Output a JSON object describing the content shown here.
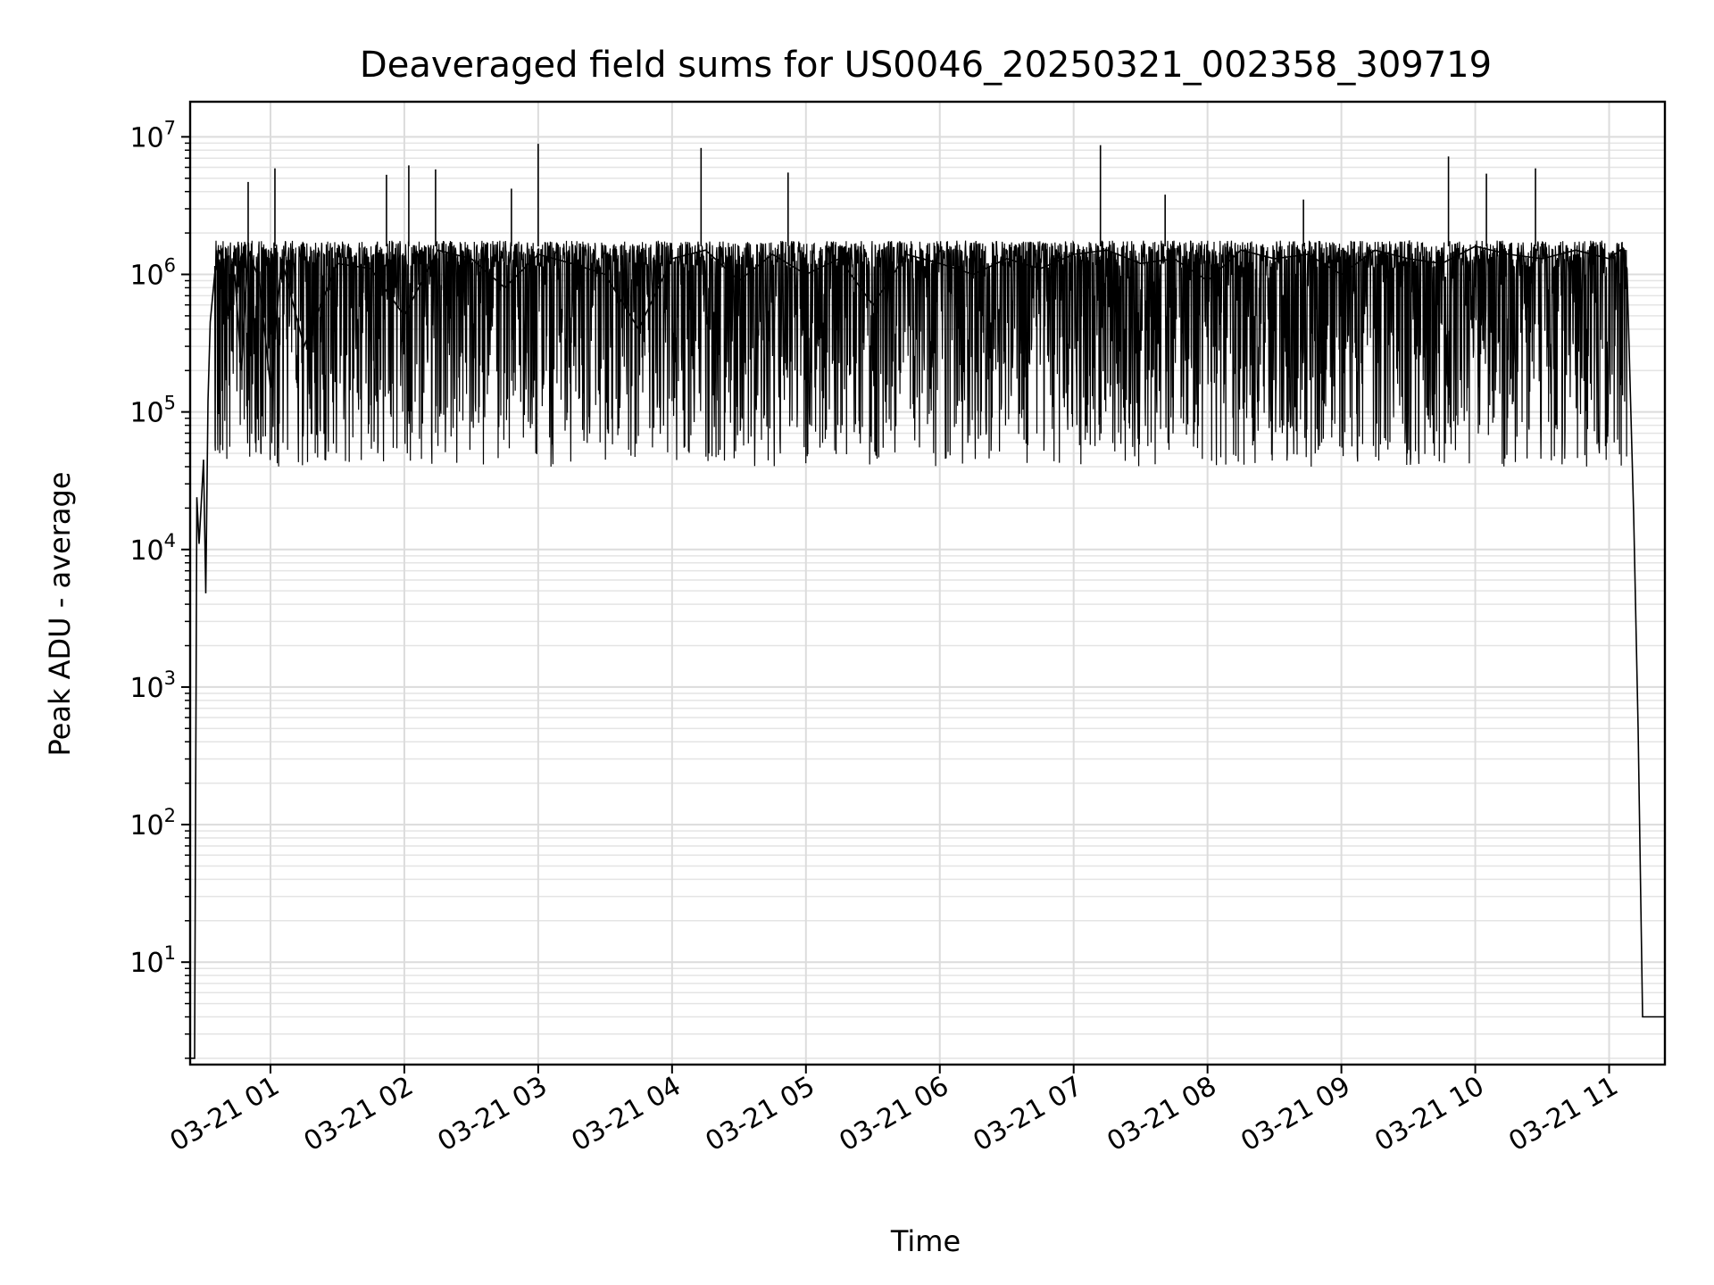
{
  "chart_data": {
    "type": "line",
    "title": "Deaveraged field sums for US0046_20250321_002358_309719",
    "xlabel": "Time",
    "ylabel": "Peak ADU - average",
    "yscale": "log",
    "grid": true,
    "xlim": [
      "03-21 00:24",
      "03-21 11:25"
    ],
    "ylim": [
      1.8,
      18000000
    ],
    "x_ticks": [
      "03-21 01",
      "03-21 02",
      "03-21 03",
      "03-21 04",
      "03-21 05",
      "03-21 06",
      "03-21 07",
      "03-21 08",
      "03-21 09",
      "03-21 10",
      "03-21 11"
    ],
    "y_ticks": [
      {
        "base": "10",
        "exp": "1",
        "value": 10
      },
      {
        "base": "10",
        "exp": "2",
        "value": 100
      },
      {
        "base": "10",
        "exp": "3",
        "value": 1000
      },
      {
        "base": "10",
        "exp": "4",
        "value": 10000
      },
      {
        "base": "10",
        "exp": "5",
        "value": 100000
      },
      {
        "base": "10",
        "exp": "6",
        "value": 1000000
      },
      {
        "base": "10",
        "exp": "7",
        "value": 10000000
      }
    ],
    "line_color": "#000000",
    "series": [
      {
        "x": [
          "03-21 00:24",
          "03-21 00:25",
          "03-21 00:26",
          "03-21 00:27",
          "03-21 00:28",
          "03-21 00:29",
          "03-21 00:30",
          "03-21 00:31",
          "03-21 00:32",
          "03-21 00:33",
          "03-21 00:35",
          "03-21 00:37",
          "03-21 00:39",
          "03-21 00:41",
          "03-21 00:44",
          "03-21 00:47",
          "03-21 00:50",
          "03-21 00:55",
          "03-21 01:00",
          "03-21 01:05",
          "03-21 01:15",
          "03-21 01:30",
          "03-21 01:45",
          "03-21 02:00",
          "03-21 02:15",
          "03-21 02:30",
          "03-21 02:45",
          "03-21 03:00",
          "03-21 03:15",
          "03-21 03:30",
          "03-21 03:45",
          "03-21 04:00",
          "03-21 04:15",
          "03-21 04:30",
          "03-21 04:45",
          "03-21 05:00",
          "03-21 05:15",
          "03-21 05:30",
          "03-21 05:45",
          "03-21 06:00",
          "03-21 06:15",
          "03-21 06:30",
          "03-21 06:45",
          "03-21 07:00",
          "03-21 07:15",
          "03-21 07:30",
          "03-21 07:45",
          "03-21 08:00",
          "03-21 08:15",
          "03-21 08:30",
          "03-21 08:45",
          "03-21 09:00",
          "03-21 09:15",
          "03-21 09:30",
          "03-21 09:45",
          "03-21 10:00",
          "03-21 10:15",
          "03-21 10:30",
          "03-21 10:45",
          "03-21 11:00",
          "03-21 11:05",
          "03-21 11:08",
          "03-21 11:11",
          "03-21 11:13",
          "03-21 11:15",
          "03-21 11:17",
          "03-21 11:19",
          "03-21 11:21",
          "03-21 11:23",
          "03-21 11:25"
        ],
        "y": [
          2,
          2,
          2,
          24000,
          11000,
          22000,
          45000,
          4800,
          120000,
          450000,
          1000000,
          1500000,
          1200000,
          500000,
          1000000,
          200000,
          1500000,
          900000,
          150000,
          1300000,
          300000,
          1200000,
          1100000,
          500000,
          1500000,
          1300000,
          800000,
          1400000,
          1200000,
          1000000,
          400000,
          1300000,
          1500000,
          900000,
          1400000,
          1000000,
          1300000,
          600000,
          1400000,
          1200000,
          1000000,
          1300000,
          1100000,
          1400000,
          1500000,
          1200000,
          1300000,
          900000,
          1500000,
          1300000,
          1400000,
          1000000,
          1500000,
          1300000,
          1200000,
          1600000,
          1400000,
          1300000,
          1500000,
          1300000,
          1500000,
          1100000,
          18000,
          500,
          4,
          4,
          4,
          4,
          4,
          4
        ]
      }
    ],
    "spikes": [
      {
        "x": "03-21 00:50",
        "y": 4700000
      },
      {
        "x": "03-21 01:02",
        "y": 5900000
      },
      {
        "x": "03-21 01:52",
        "y": 5300000
      },
      {
        "x": "03-21 02:02",
        "y": 6200000
      },
      {
        "x": "03-21 02:14",
        "y": 5800000
      },
      {
        "x": "03-21 02:48",
        "y": 4200000
      },
      {
        "x": "03-21 03:00",
        "y": 8900000
      },
      {
        "x": "03-21 04:13",
        "y": 8300000
      },
      {
        "x": "03-21 04:52",
        "y": 5500000
      },
      {
        "x": "03-21 07:12",
        "y": 8700000
      },
      {
        "x": "03-21 07:41",
        "y": 3800000
      },
      {
        "x": "03-21 08:43",
        "y": 3500000
      },
      {
        "x": "03-21 09:48",
        "y": 7200000
      },
      {
        "x": "03-21 10:05",
        "y": 5400000
      },
      {
        "x": "03-21 10:27",
        "y": 5900000
      }
    ],
    "band": {
      "low": 40000,
      "high": 1600000
    }
  }
}
